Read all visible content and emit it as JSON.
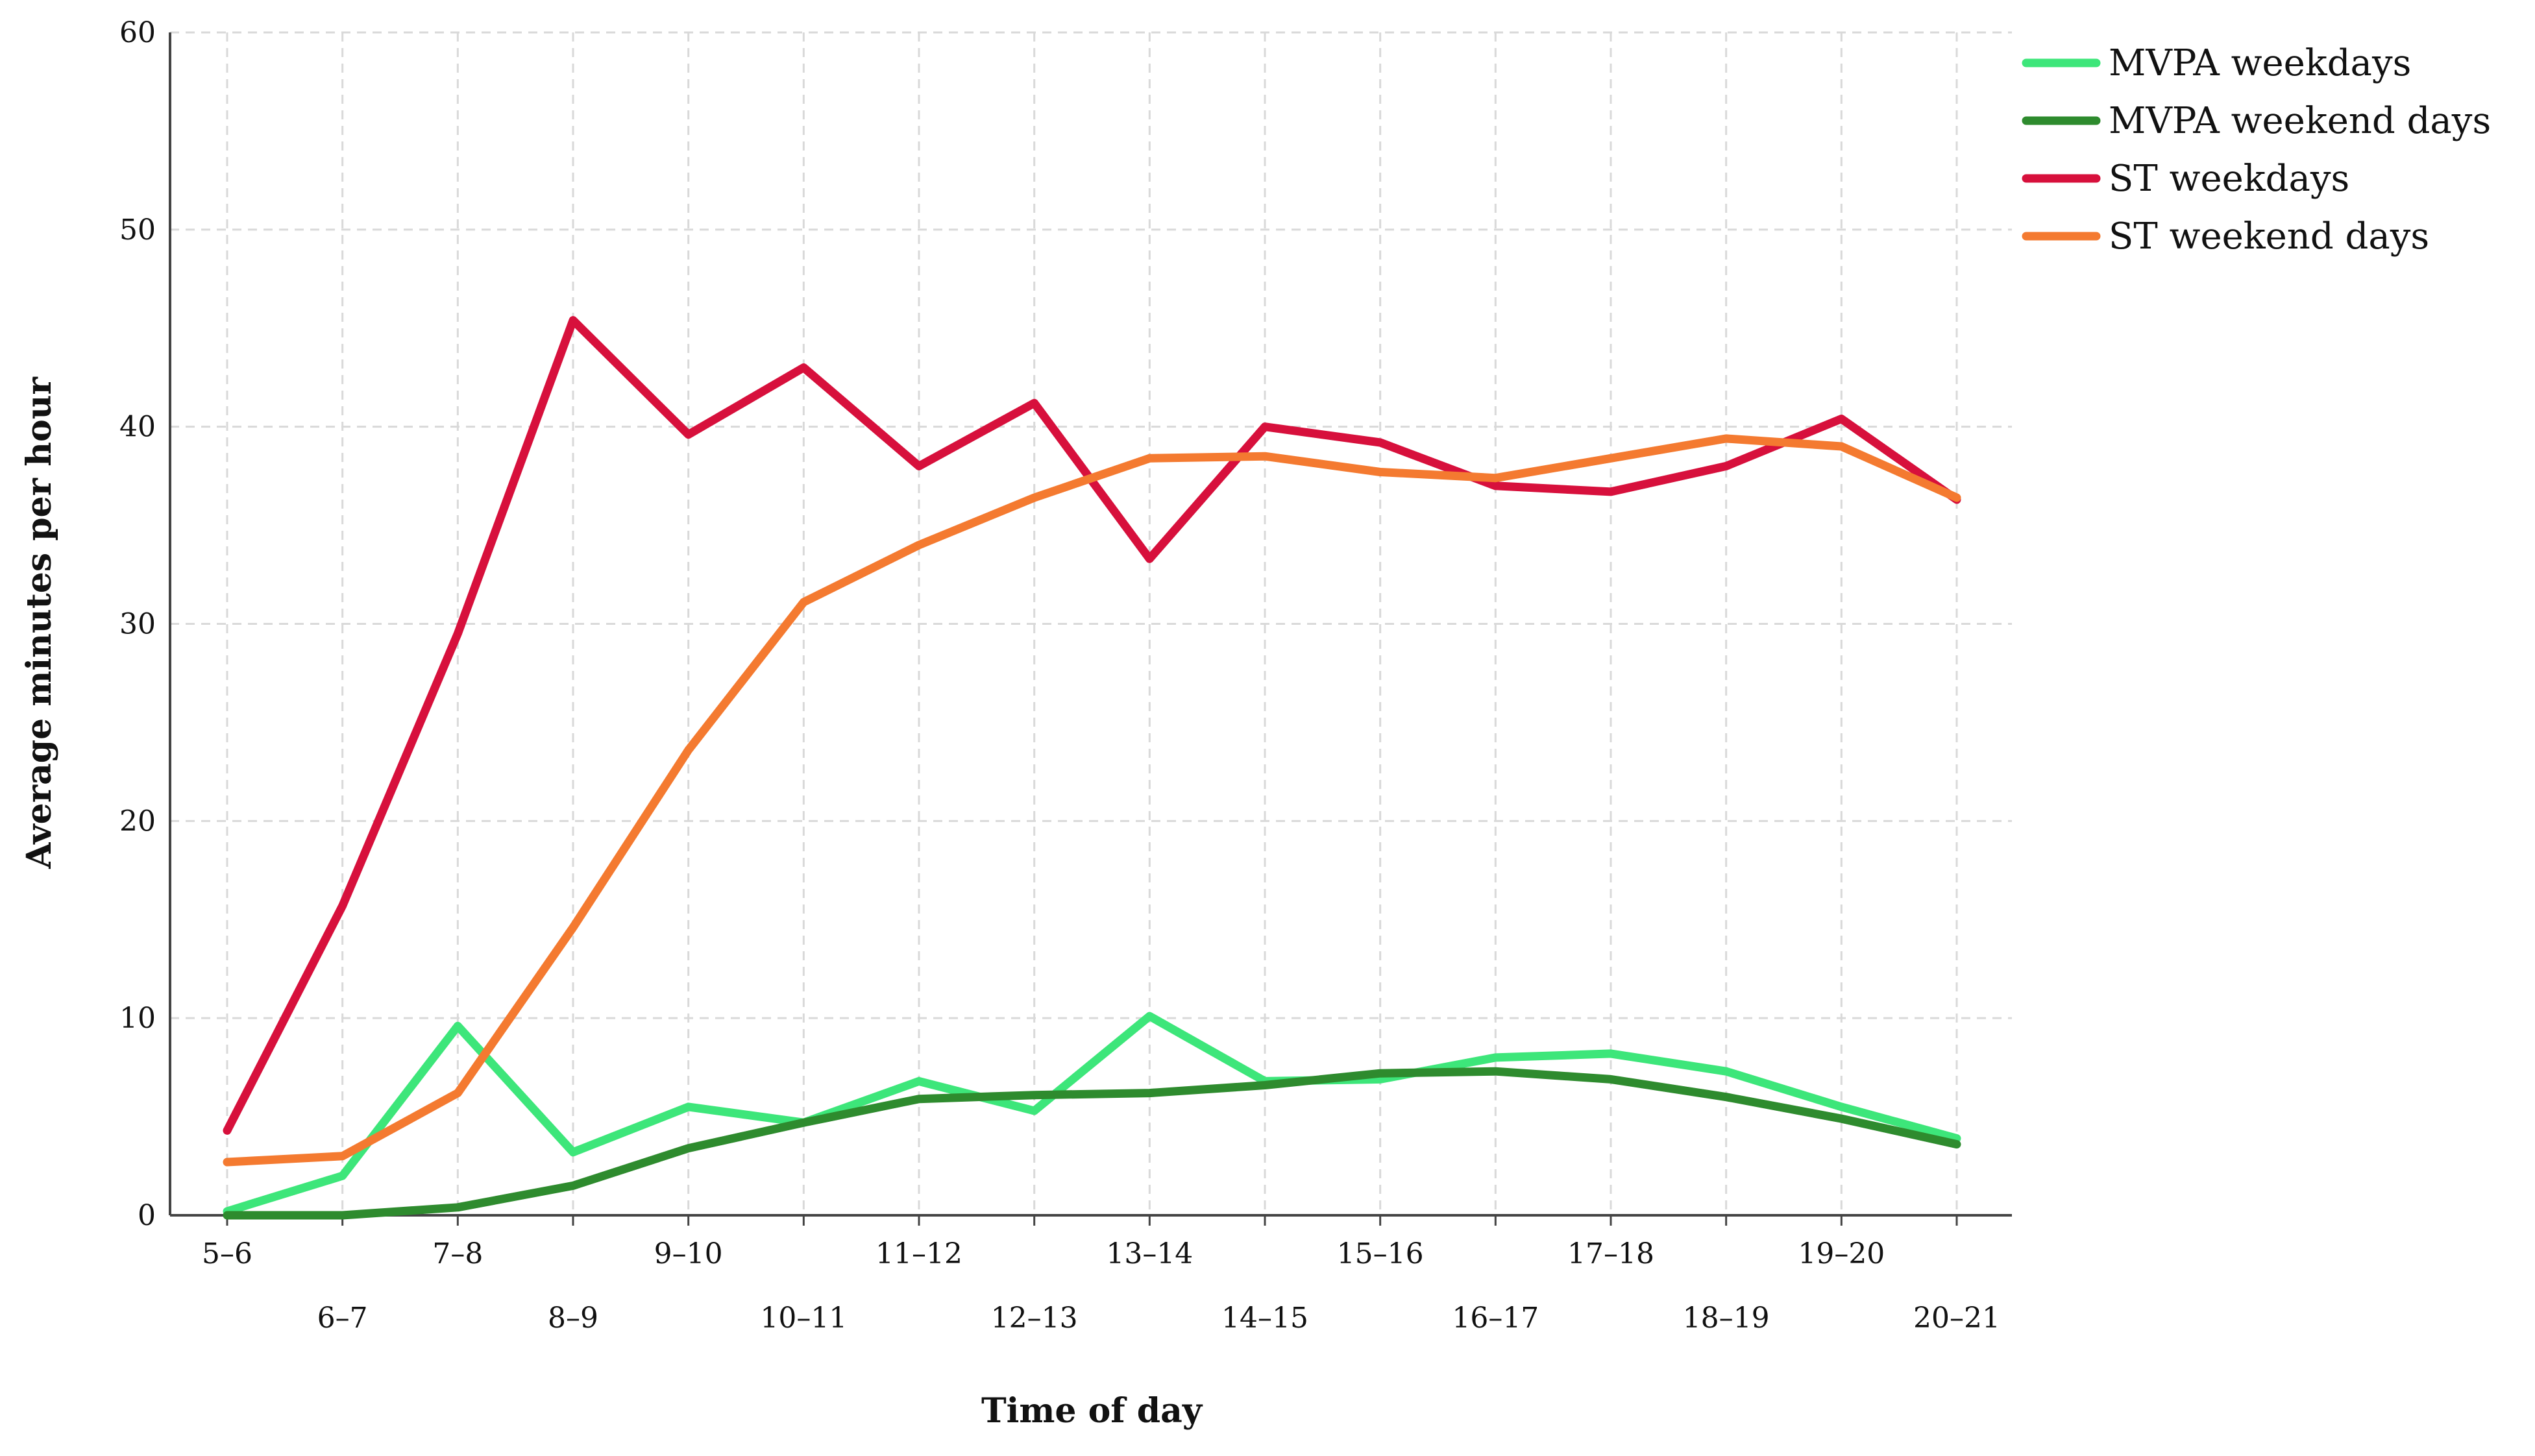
{
  "chart_data": {
    "type": "line",
    "xlabel": "Time of day",
    "ylabel": "Average minutes per hour",
    "categories": [
      "5–6",
      "6–7",
      "7–8",
      "8–9",
      "9–10",
      "10–11",
      "11–12",
      "12–13",
      "13–14",
      "14–15",
      "15–16",
      "16–17",
      "17–18",
      "18–19",
      "19–20",
      "20–21"
    ],
    "ylim": [
      0,
      60
    ],
    "yticks": [
      0,
      10,
      20,
      30,
      40,
      50,
      60
    ],
    "grid": true,
    "legend_position": "top-right",
    "series": [
      {
        "name": "MVPA weekdays",
        "color": "#3de67a",
        "values": [
          0.2,
          2.0,
          9.6,
          3.2,
          5.5,
          4.7,
          6.8,
          5.3,
          10.1,
          6.8,
          6.9,
          8.0,
          8.2,
          7.3,
          5.5,
          3.9
        ]
      },
      {
        "name": "MVPA weekend days",
        "color": "#2e8b2e",
        "values": [
          0.0,
          0.0,
          0.4,
          1.5,
          3.4,
          4.7,
          5.9,
          6.1,
          6.2,
          6.6,
          7.2,
          7.3,
          6.9,
          6.0,
          4.9,
          3.6
        ]
      },
      {
        "name": "ST weekdays",
        "color": "#d7103c",
        "values": [
          4.3,
          15.7,
          29.5,
          45.4,
          39.6,
          43.0,
          38.0,
          41.2,
          33.3,
          40.0,
          39.2,
          37.0,
          36.7,
          38.0,
          40.4,
          36.3
        ]
      },
      {
        "name": "ST weekend days",
        "color": "#f47a30",
        "values": [
          2.7,
          3.0,
          6.2,
          14.6,
          23.6,
          31.1,
          34.0,
          36.4,
          38.4,
          38.5,
          37.7,
          37.4,
          38.4,
          39.4,
          39.0,
          36.4
        ]
      }
    ]
  }
}
